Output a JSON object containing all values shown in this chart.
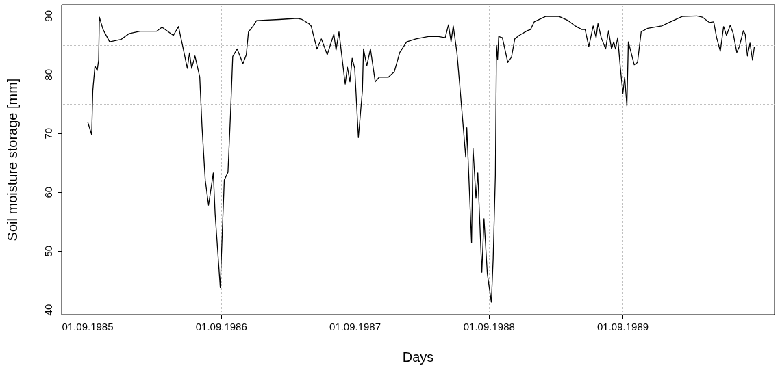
{
  "chart_data": {
    "type": "line",
    "xlabel": "Days",
    "ylabel": "Soil moisture storage [mm]",
    "xlim": [
      "1985-06-22",
      "1990-10-20"
    ],
    "ylim": [
      39.2,
      91.9
    ],
    "xticks": [
      {
        "value": "1985-09-01",
        "label": "01.09.1985"
      },
      {
        "value": "1986-09-01",
        "label": "01.09.1986"
      },
      {
        "value": "1987-09-01",
        "label": "01.09.1987"
      },
      {
        "value": "1988-09-01",
        "label": "01.09.1988"
      },
      {
        "value": "1989-09-01",
        "label": "01.09.1989"
      }
    ],
    "yticks": [
      40,
      50,
      60,
      70,
      80,
      90
    ],
    "grid": "x",
    "marker": "none",
    "line_style": "solid",
    "ref_lines": [
      {
        "axis": "y",
        "value": 75,
        "color": "#c0c0c0",
        "line_style": "dotted"
      },
      {
        "axis": "y",
        "value": 80,
        "color": "#c0c0c0",
        "line_style": "dotted"
      },
      {
        "axis": "y",
        "value": 85,
        "color": "#c0c0c0",
        "line_style": "dotted"
      },
      {
        "axis": "y",
        "value": 90,
        "color": "#c0c0c0",
        "line_style": "dotted"
      }
    ],
    "x": [
      "1985-09-01",
      "1985-09-12",
      "1985-09-15",
      "1985-09-21",
      "1985-09-27",
      "1985-10-01",
      "1985-10-03",
      "1985-10-13",
      "1985-10-31",
      "1985-12-01",
      "1985-12-23",
      "1986-01-22",
      "1986-03-08",
      "1986-03-23",
      "1986-04-23",
      "1986-05-07",
      "1986-05-18",
      "1986-05-31",
      "1986-06-06",
      "1986-06-12",
      "1986-06-21",
      "1986-07-04",
      "1986-07-10",
      "1986-07-16",
      "1986-07-19",
      "1986-07-28",
      "1986-08-10",
      "1986-08-15",
      "1986-08-29",
      "1986-09-04",
      "1986-09-09",
      "1986-09-19",
      "1986-09-26",
      "1986-10-02",
      "1986-10-14",
      "1986-10-30",
      "1986-11-08",
      "1986-11-14",
      "1986-11-27",
      "1986-12-06",
      "1987-02-06",
      "1987-03-28",
      "1987-04-09",
      "1987-04-28",
      "1987-05-04",
      "1987-05-20",
      "1987-06-01",
      "1987-06-17",
      "1987-07-05",
      "1987-07-11",
      "1987-07-19",
      "1987-08-05",
      "1987-08-11",
      "1987-08-18",
      "1987-08-24",
      "1987-08-31",
      "1987-09-10",
      "1987-09-21",
      "1987-09-24",
      "1987-10-03",
      "1987-10-13",
      "1987-10-26",
      "1987-11-06",
      "1987-12-01",
      "1987-12-17",
      "1988-01-01",
      "1988-01-20",
      "1988-02-14",
      "1988-03-19",
      "1988-04-16",
      "1988-05-04",
      "1988-05-13",
      "1988-05-20",
      "1988-05-26",
      "1988-06-05",
      "1988-06-14",
      "1988-06-23",
      "1988-06-29",
      "1988-07-02",
      "1988-07-15",
      "1988-07-19",
      "1988-07-27",
      "1988-08-01",
      "1988-08-12",
      "1988-08-18",
      "1988-08-27",
      "1988-09-07",
      "1988-09-12",
      "1988-09-18",
      "1988-09-21",
      "1988-09-24",
      "1988-09-27",
      "1988-10-07",
      "1988-10-22",
      "1988-11-01",
      "1988-11-10",
      "1988-11-22",
      "1988-12-14",
      "1988-12-23",
      "1989-01-02",
      "1989-02-02",
      "1989-03-11",
      "1989-04-05",
      "1989-04-24",
      "1989-05-12",
      "1989-05-21",
      "1989-05-31",
      "1989-06-12",
      "1989-06-20",
      "1989-06-25",
      "1989-07-04",
      "1989-07-16",
      "1989-07-24",
      "1989-08-01",
      "1989-08-07",
      "1989-08-12",
      "1989-08-18",
      "1989-08-25",
      "1989-09-01",
      "1989-09-06",
      "1989-09-12",
      "1989-09-16",
      "1989-10-02",
      "1989-10-11",
      "1989-10-21",
      "1989-11-08",
      "1989-12-16",
      "1990-01-09",
      "1990-02-10",
      "1990-03-22",
      "1990-04-06",
      "1990-04-25",
      "1990-05-07",
      "1990-05-15",
      "1990-05-25",
      "1990-06-03",
      "1990-06-11",
      "1990-06-21",
      "1990-06-29",
      "1990-07-09",
      "1990-07-16",
      "1990-07-27",
      "1990-08-01",
      "1990-08-07",
      "1990-08-14",
      "1990-08-21",
      "1990-08-26"
    ],
    "series": [
      {
        "color": "#000000",
        "values": [
          72.0,
          69.8,
          77.3,
          81.5,
          80.7,
          82.5,
          89.8,
          87.7,
          85.6,
          86.0,
          87.0,
          87.4,
          87.4,
          88.1,
          86.7,
          88.2,
          85.0,
          81.1,
          83.7,
          81.1,
          83.2,
          79.6,
          71.4,
          65.1,
          62.1,
          57.8,
          63.3,
          56.3,
          43.8,
          54.0,
          62.1,
          63.4,
          73.3,
          83.1,
          84.4,
          81.9,
          83.4,
          87.3,
          88.3,
          89.2,
          89.4,
          89.6,
          89.4,
          88.7,
          88.3,
          84.4,
          86.1,
          83.4,
          86.9,
          84.2,
          87.3,
          78.4,
          81.3,
          78.8,
          82.8,
          81.1,
          69.3,
          77.3,
          84.4,
          81.5,
          84.4,
          78.8,
          79.6,
          79.6,
          80.5,
          83.8,
          85.6,
          86.1,
          86.5,
          86.5,
          86.3,
          88.5,
          85.6,
          88.3,
          83.8,
          77.3,
          70.6,
          66.0,
          71.0,
          51.4,
          67.5,
          59.0,
          63.3,
          46.4,
          55.5,
          46.2,
          41.3,
          48.7,
          62.9,
          85.0,
          82.6,
          86.5,
          86.3,
          82.1,
          83.0,
          86.1,
          86.7,
          87.5,
          87.7,
          89.0,
          89.9,
          89.9,
          89.2,
          88.3,
          87.7,
          87.7,
          84.8,
          88.3,
          86.3,
          88.7,
          86.3,
          84.4,
          87.5,
          84.4,
          85.6,
          84.4,
          86.3,
          81.3,
          76.8,
          79.6,
          74.7,
          85.6,
          81.7,
          82.1,
          87.3,
          87.9,
          88.3,
          89.0,
          89.9,
          90.0,
          89.8,
          88.9,
          89.0,
          86.3,
          84.0,
          88.2,
          86.7,
          88.4,
          87.1,
          83.8,
          84.8,
          87.5,
          86.9,
          83.2,
          85.4,
          82.5,
          84.8
        ]
      }
    ]
  }
}
